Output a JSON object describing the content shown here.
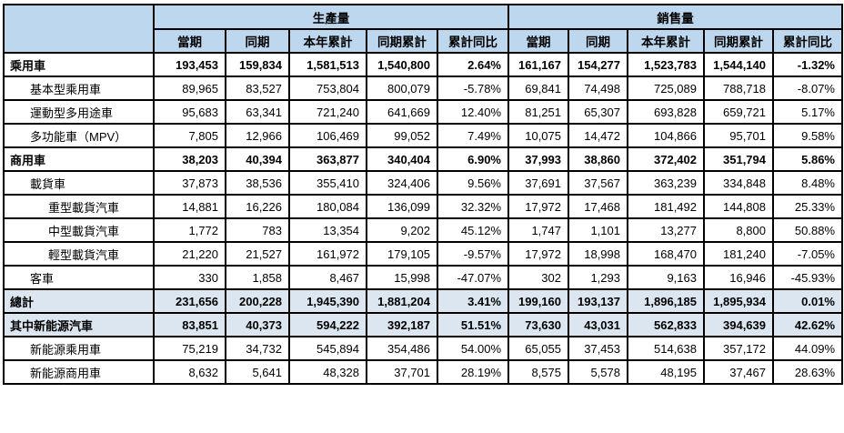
{
  "table": {
    "section_headers": [
      "生產量",
      "銷售量"
    ],
    "columns": [
      "當期",
      "同期",
      "本年累計",
      "同期累計",
      "累計同比"
    ],
    "rows": [
      {
        "label": "乘用車",
        "indent": 0,
        "bold": true,
        "highlight": false,
        "production": [
          "193,453",
          "159,834",
          "1,581,513",
          "1,540,800",
          "2.64%"
        ],
        "sales": [
          "161,167",
          "154,277",
          "1,523,783",
          "1,544,140",
          "-1.32%"
        ]
      },
      {
        "label": "基本型乘用車",
        "indent": 1,
        "bold": false,
        "highlight": false,
        "production": [
          "89,965",
          "83,527",
          "753,804",
          "800,079",
          "-5.78%"
        ],
        "sales": [
          "69,841",
          "74,498",
          "725,089",
          "788,718",
          "-8.07%"
        ]
      },
      {
        "label": "運動型多用途車",
        "indent": 1,
        "bold": false,
        "highlight": false,
        "production": [
          "95,683",
          "63,341",
          "721,240",
          "641,669",
          "12.40%"
        ],
        "sales": [
          "81,251",
          "65,307",
          "693,828",
          "659,721",
          "5.17%"
        ]
      },
      {
        "label": "多功能車（MPV）",
        "indent": 1,
        "bold": false,
        "highlight": false,
        "production": [
          "7,805",
          "12,966",
          "106,469",
          "99,052",
          "7.49%"
        ],
        "sales": [
          "10,075",
          "14,472",
          "104,866",
          "95,701",
          "9.58%"
        ]
      },
      {
        "label": "商用車",
        "indent": 0,
        "bold": true,
        "highlight": false,
        "production": [
          "38,203",
          "40,394",
          "363,877",
          "340,404",
          "6.90%"
        ],
        "sales": [
          "37,993",
          "38,860",
          "372,402",
          "351,794",
          "5.86%"
        ]
      },
      {
        "label": "載貨車",
        "indent": 1,
        "bold": false,
        "highlight": false,
        "production": [
          "37,873",
          "38,536",
          "355,410",
          "324,406",
          "9.56%"
        ],
        "sales": [
          "37,691",
          "37,567",
          "363,239",
          "334,848",
          "8.48%"
        ]
      },
      {
        "label": "重型載貨汽車",
        "indent": 2,
        "bold": false,
        "highlight": false,
        "production": [
          "14,881",
          "16,226",
          "180,084",
          "136,099",
          "32.32%"
        ],
        "sales": [
          "17,972",
          "17,468",
          "181,492",
          "144,808",
          "25.33%"
        ]
      },
      {
        "label": "中型載貨汽車",
        "indent": 2,
        "bold": false,
        "highlight": false,
        "production": [
          "1,772",
          "783",
          "13,354",
          "9,202",
          "45.12%"
        ],
        "sales": [
          "1,747",
          "1,101",
          "13,277",
          "8,800",
          "50.88%"
        ]
      },
      {
        "label": "輕型載貨汽車",
        "indent": 2,
        "bold": false,
        "highlight": false,
        "production": [
          "21,220",
          "21,527",
          "161,972",
          "179,105",
          "-9.57%"
        ],
        "sales": [
          "17,972",
          "18,998",
          "168,470",
          "181,240",
          "-7.05%"
        ]
      },
      {
        "label": "客車",
        "indent": 1,
        "bold": false,
        "highlight": false,
        "production": [
          "330",
          "1,858",
          "8,467",
          "15,998",
          "-47.07%"
        ],
        "sales": [
          "302",
          "1,293",
          "9,163",
          "16,946",
          "-45.93%"
        ]
      },
      {
        "label": "總計",
        "indent": 0,
        "bold": true,
        "highlight": true,
        "production": [
          "231,656",
          "200,228",
          "1,945,390",
          "1,881,204",
          "3.41%"
        ],
        "sales": [
          "199,160",
          "193,137",
          "1,896,185",
          "1,895,934",
          "0.01%"
        ]
      },
      {
        "label": "其中新能源汽車",
        "indent": 0,
        "bold": true,
        "highlight": true,
        "production": [
          "83,851",
          "40,373",
          "594,222",
          "392,187",
          "51.51%"
        ],
        "sales": [
          "73,630",
          "43,031",
          "562,833",
          "394,639",
          "42.62%"
        ]
      },
      {
        "label": "新能源乘用車",
        "indent": 1,
        "bold": false,
        "highlight": false,
        "production": [
          "75,219",
          "34,732",
          "545,894",
          "354,486",
          "54.00%"
        ],
        "sales": [
          "65,055",
          "37,453",
          "514,638",
          "357,172",
          "44.09%"
        ]
      },
      {
        "label": "新能源商用車",
        "indent": 1,
        "bold": false,
        "highlight": false,
        "production": [
          "8,632",
          "5,641",
          "48,328",
          "37,701",
          "28.19%"
        ],
        "sales": [
          "8,575",
          "5,578",
          "48,195",
          "37,467",
          "28.63%"
        ]
      }
    ]
  },
  "colors": {
    "header_bg": "#BDD7EE",
    "subtotal_bg": "#DCE6F1",
    "border": "#000000",
    "text": "#000000"
  }
}
